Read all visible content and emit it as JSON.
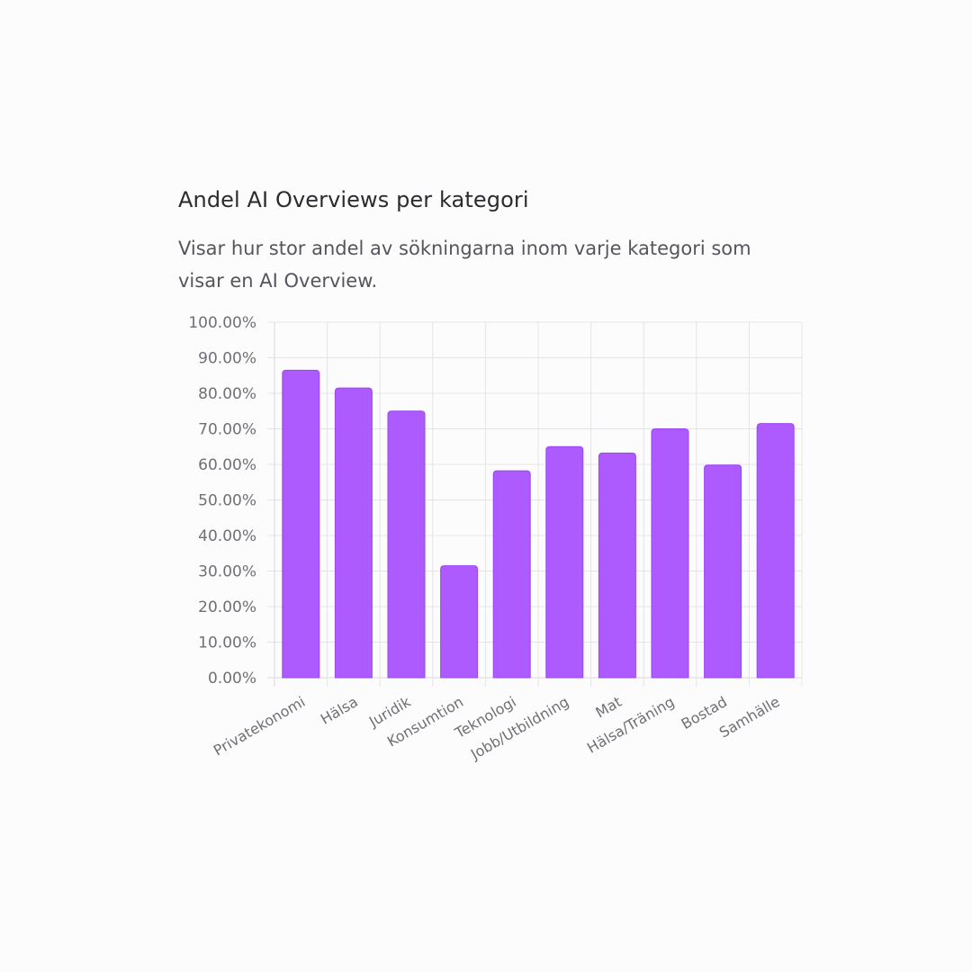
{
  "header": {
    "title": "Andel AI Overviews per kategori",
    "subtitle": "Visar hur stor andel av sökningarna inom varje kategori som visar en AI Overview."
  },
  "colors": {
    "bar_fill": "#ad5bff",
    "bar_stroke": "#9b45f2",
    "grid": "#e6e3e8",
    "axis": "#d9d6dc"
  },
  "chart_data": {
    "type": "bar",
    "title": "Andel AI Overviews per kategori",
    "xlabel": "",
    "ylabel": "",
    "categories": [
      "Privatekonomi",
      "Hälsa",
      "Juridik",
      "Konsumtion",
      "Teknologi",
      "Jobb/Utbildning",
      "Mat",
      "Hälsa/Träning",
      "Bostad",
      "Samhälle"
    ],
    "values": [
      86.5,
      81.5,
      75.0,
      31.5,
      58.2,
      65.0,
      63.2,
      70.0,
      59.8,
      71.5
    ],
    "ylim": [
      0,
      100
    ],
    "yticks": [
      "0.00%",
      "10.00%",
      "20.00%",
      "30.00%",
      "40.00%",
      "50.00%",
      "60.00%",
      "70.00%",
      "80.00%",
      "90.00%",
      "100.00%"
    ],
    "grid": true,
    "legend": "none"
  }
}
